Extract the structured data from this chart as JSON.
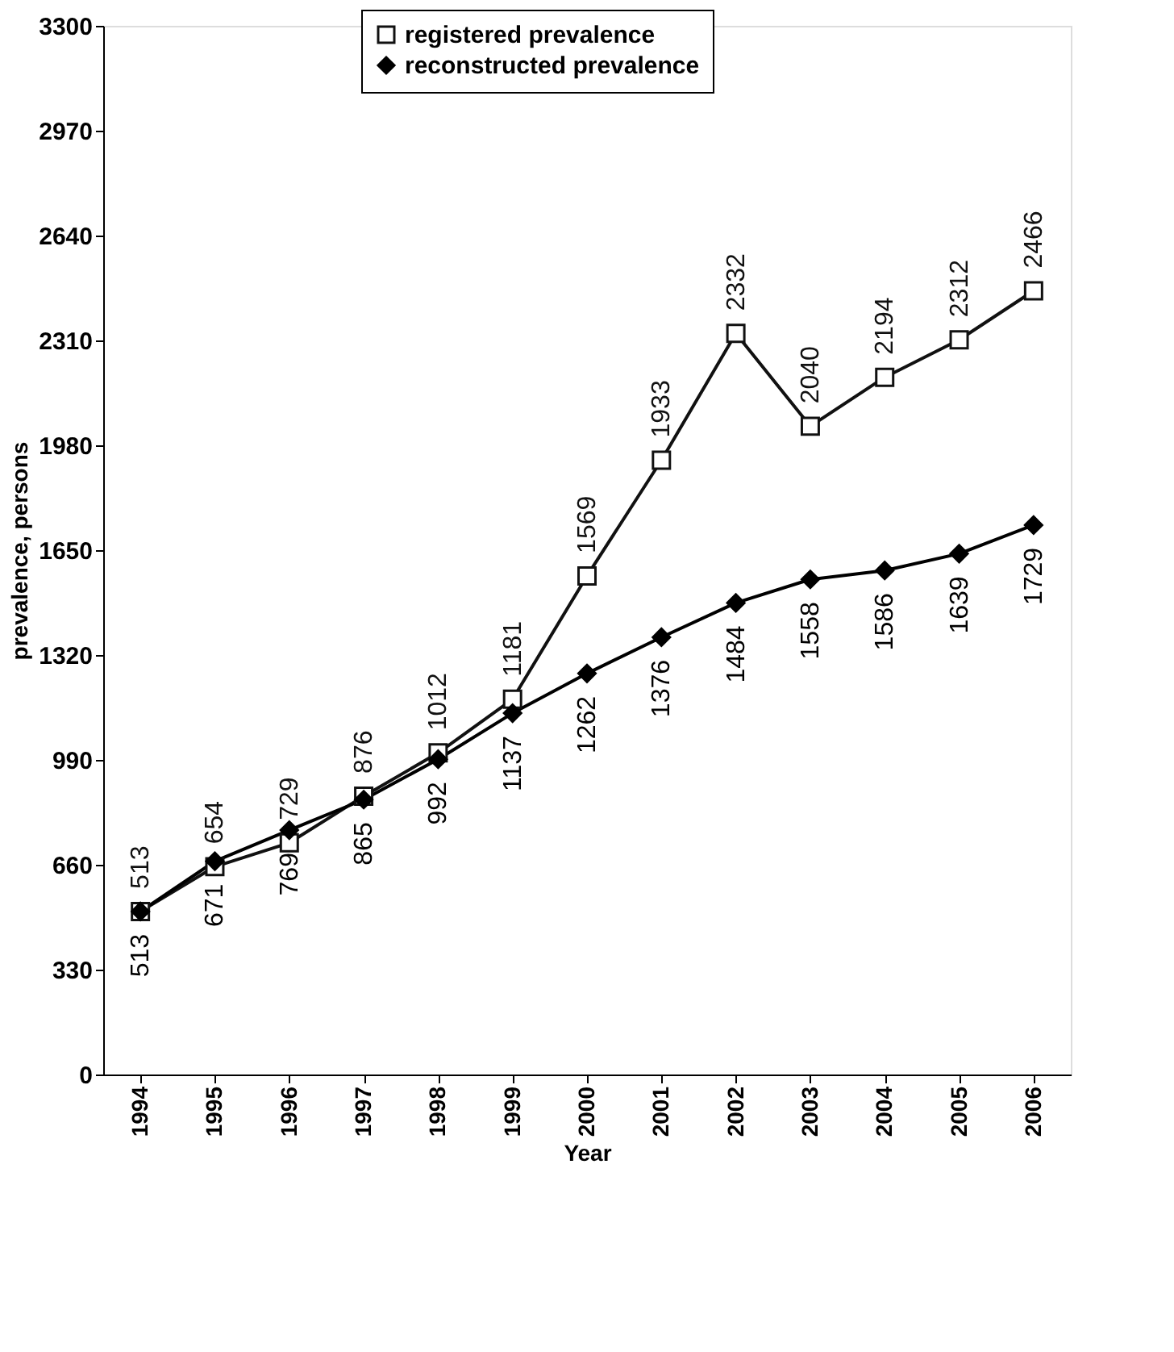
{
  "chart_data": {
    "type": "line",
    "xlabel": "Year",
    "ylabel": "prevalence, persons",
    "categories": [
      "1994",
      "1995",
      "1996",
      "1997",
      "1998",
      "1999",
      "2000",
      "2001",
      "2002",
      "2003",
      "2004",
      "2005",
      "2006"
    ],
    "series": [
      {
        "name": "registered prevalence",
        "color": "#111111",
        "marker": "square",
        "values": [
          513,
          654,
          729,
          876,
          1012,
          1181,
          1569,
          1933,
          2332,
          2040,
          2194,
          2312,
          2466
        ]
      },
      {
        "name": "reconstructed prevalence",
        "color": "#000000",
        "marker": "diamond",
        "values": [
          513,
          671,
          769,
          865,
          992,
          1137,
          1262,
          1376,
          1484,
          1558,
          1586,
          1639,
          1729
        ]
      }
    ],
    "ylim": [
      0,
      3300
    ],
    "yticks": [
      0,
      330,
      660,
      990,
      1320,
      1650,
      1980,
      2310,
      2640,
      2970,
      3300
    ],
    "data_labels": true,
    "legend": "top",
    "grid": false
  }
}
